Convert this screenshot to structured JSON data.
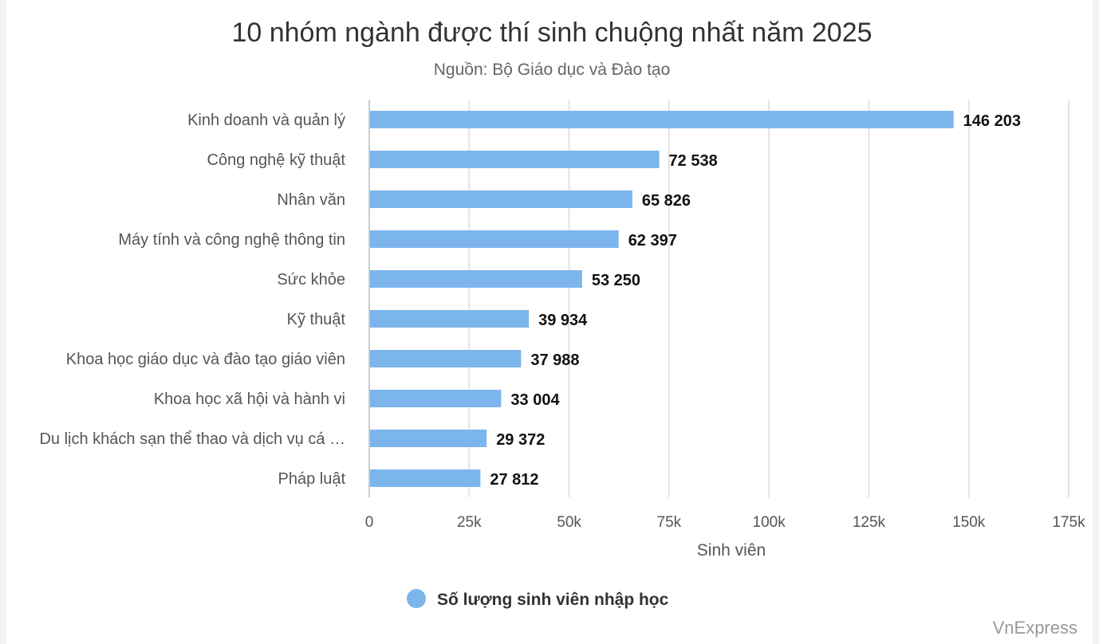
{
  "chart_data": {
    "type": "bar",
    "orientation": "horizontal",
    "title": "10 nhóm ngành được thí sinh chuộng nhất năm 2025",
    "subtitle": "Nguồn: Bộ Giáo dục và Đào tạo",
    "xlabel": "Sinh viên",
    "ylabel": "",
    "xlim": [
      0,
      175000
    ],
    "ticks": [
      0,
      25000,
      50000,
      75000,
      100000,
      125000,
      150000,
      175000
    ],
    "tick_labels": [
      "0",
      "25k",
      "50k",
      "75k",
      "100k",
      "125k",
      "150k",
      "175k"
    ],
    "grid": true,
    "legend_position": "bottom",
    "categories": [
      "Kinh doanh và quản lý",
      "Công nghệ kỹ thuật",
      "Nhân văn",
      "Máy tính và công nghệ thông tin",
      "Sức khỏe",
      "Kỹ thuật",
      "Khoa học giáo dục và đào tạo giáo viên",
      "Khoa học xã hội và hành vi",
      "Du lịch khách sạn thể thao và dịch vụ cá …",
      "Pháp luật"
    ],
    "series": [
      {
        "name": "Số lượng sinh viên nhập học",
        "color": "#7cb5ec",
        "values": [
          146203,
          72538,
          65826,
          62397,
          53250,
          39934,
          37988,
          33004,
          29372,
          27812
        ],
        "value_labels": [
          "146 203",
          "72 538",
          "65 826",
          "62 397",
          "53 250",
          "39 934",
          "37 988",
          "33 004",
          "29 372",
          "27 812"
        ]
      }
    ]
  },
  "credit": "VnExpress"
}
